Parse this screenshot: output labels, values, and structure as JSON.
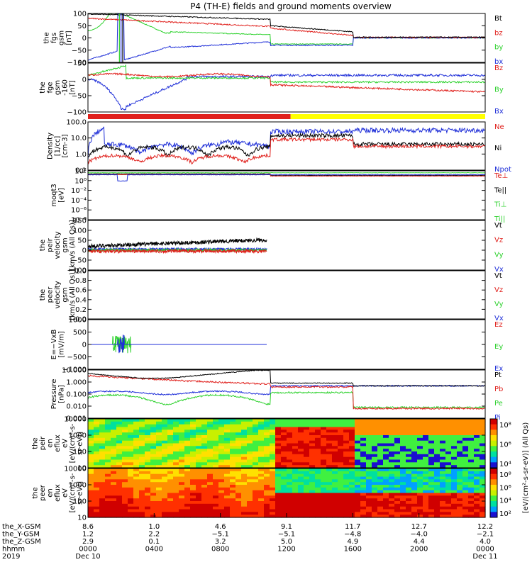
{
  "chart_data": {
    "type": "line",
    "title": "P4 (TH-E) fields and ground moments overview",
    "colors": {
      "black": "#000000",
      "red": "#e0201c",
      "green": "#2cd12c",
      "blue": "#1f2fd8",
      "yellow": "#ffff00",
      "gray": "#888888"
    },
    "panels": [
      {
        "id": "fgs",
        "ylabel": [
          "the",
          "fgs",
          "gsm",
          "[nT]"
        ],
        "yscale": "linear",
        "ylim": [
          -100,
          100
        ],
        "yticks": [
          "100",
          "50",
          "0",
          "−50",
          "−100"
        ],
        "legend": [
          {
            "label": "Bt",
            "color": "#000000"
          },
          {
            "label": "bz",
            "color": "#e0201c"
          },
          {
            "label": "by",
            "color": "#2cd12c"
          },
          {
            "label": "bx",
            "color": "#1f2fd8"
          }
        ]
      },
      {
        "id": "fge",
        "ylabel": [
          "the",
          "fge",
          "gsm",
          "-160",
          "[nT]"
        ],
        "yscale": "linear",
        "ylim": [
          -130,
          50
        ],
        "yticks": [
          "50",
          "0",
          "−50",
          "−100"
        ],
        "legend": [
          {
            "label": "Bz",
            "color": "#e0201c"
          },
          {
            "label": "By",
            "color": "#2cd12c"
          },
          {
            "label": "Bx",
            "color": "#1f2fd8"
          }
        ]
      },
      {
        "id": "density",
        "ylabel": [
          "Density",
          "[1/cc]",
          "[cm-3]"
        ],
        "yscale": "log",
        "ylim": [
          0.1,
          100
        ],
        "yticks": [
          "100.0",
          "10.0",
          "1.0",
          "0.1"
        ],
        "legend": [
          {
            "label": "Ne",
            "color": "#e0201c"
          },
          {
            "label": "Ni",
            "color": "#000000"
          },
          {
            "label": "Npot",
            "color": "#1f2fd8"
          }
        ]
      },
      {
        "id": "temp",
        "ylabel": [
          "moqt3",
          "[eV]"
        ],
        "yscale": "log",
        "ylim": [
          1e-10,
          1000
        ],
        "yticks": [
          "10²",
          "10⁰",
          "10⁻²",
          "10⁻⁴",
          "10⁻⁶",
          "10⁻⁸"
        ],
        "legend": [
          {
            "label": "Te⊥",
            "color": "#e0201c"
          },
          {
            "label": "Te||",
            "color": "#000000"
          },
          {
            "label": "Ti⊥",
            "color": "#2cd12c"
          },
          {
            "label": "Ti||",
            "color": "#2cd12c"
          }
        ]
      },
      {
        "id": "peir_vel",
        "ylabel": [
          "the",
          "peir",
          "velocity",
          "gsm",
          "[km/s (All Qs)]"
        ],
        "yscale": "linear",
        "ylim": [
          -100,
          150
        ],
        "yticks": [
          "150",
          "100",
          "50",
          "0",
          "−50",
          "−100"
        ],
        "legend": [
          {
            "label": "Vt",
            "color": "#000000"
          },
          {
            "label": "Vz",
            "color": "#e0201c"
          },
          {
            "label": "Vy",
            "color": "#2cd12c"
          },
          {
            "label": "Vx",
            "color": "#1f2fd8"
          }
        ]
      },
      {
        "id": "peer_vel",
        "ylabel": [
          "the",
          "peer",
          "velocity",
          "gsm",
          "[km/s (All Qs)]"
        ],
        "yscale": "linear",
        "ylim": [
          0,
          1
        ],
        "yticks": [
          "1.0",
          "0.8",
          "0.6",
          "0.4",
          "0.2",
          "0.0"
        ],
        "legend": [
          {
            "label": "Vt",
            "color": "#000000"
          },
          {
            "label": "Vz",
            "color": "#e0201c"
          },
          {
            "label": "Vy",
            "color": "#2cd12c"
          },
          {
            "label": "Vx",
            "color": "#1f2fd8"
          }
        ]
      },
      {
        "id": "efield",
        "ylabel": [
          "E=−VxB",
          "[mV/m]"
        ],
        "yscale": "linear",
        "ylim": [
          -1000,
          1000
        ],
        "yticks": [
          "1000",
          "500",
          "0",
          "−500",
          "−1000"
        ],
        "legend": [
          {
            "label": "Ez",
            "color": "#e0201c"
          },
          {
            "label": "Ey",
            "color": "#2cd12c"
          },
          {
            "label": "Ex",
            "color": "#1f2fd8"
          }
        ]
      },
      {
        "id": "pressure",
        "ylabel": [
          "Pressure",
          "[nPa]"
        ],
        "yscale": "log",
        "ylim": [
          0.0005,
          15
        ],
        "yticks": [
          "10.000",
          "1.000",
          "0.100",
          "0.010",
          "0.001"
        ],
        "legend": [
          {
            "label": "Pt",
            "color": "#000000"
          },
          {
            "label": "Pb",
            "color": "#e0201c"
          },
          {
            "label": "Pe",
            "color": "#2cd12c"
          },
          {
            "label": "Pi",
            "color": "#1f2fd8"
          }
        ]
      },
      {
        "id": "peir_spec",
        "ylabel": [
          "the",
          "peir",
          "en",
          "eflux",
          "eV",
          "[eV/(cm²-s-",
          "sr-eV)]"
        ],
        "yscale": "log",
        "ylim": [
          5,
          25000
        ],
        "yticks": [
          "10000",
          "1000",
          "100",
          "10"
        ],
        "colorbar": [
          "10⁸",
          "10⁶",
          "10⁴"
        ]
      },
      {
        "id": "peer_spec",
        "ylabel": [
          "the",
          "peer",
          "en",
          "eflux",
          "eV",
          "[eV/(cm²-s-",
          "sr-eV)]"
        ],
        "yscale": "log",
        "ylim": [
          5,
          25000
        ],
        "yticks": [
          "10000",
          "1000",
          "100",
          "10"
        ],
        "colorbar": [
          "10⁸",
          "10⁶",
          "10⁴",
          "10²"
        ]
      }
    ],
    "colorbar_label": "[eV/(cm²-s-sr-eV)] (All Qs)",
    "mode_bar": {
      "segments": [
        {
          "start": 0,
          "end": 0.51,
          "color": "red"
        },
        {
          "start": 0.51,
          "end": 1,
          "color": "yellow"
        }
      ]
    },
    "footer": {
      "rows": [
        {
          "label": "the_X-GSM",
          "values": [
            "8.6",
            "1.0",
            "4.6",
            "9.1",
            "11.7",
            "12.7",
            "12.2"
          ]
        },
        {
          "label": "the_Y-GSM",
          "values": [
            "1.2",
            "2.2",
            "−5.1",
            "−5.1",
            "−4.8",
            "−4.0",
            "−2.1"
          ]
        },
        {
          "label": "the_Z-GSM",
          "values": [
            "2.9",
            "0.1",
            "3.2",
            "5.0",
            "4.9",
            "4.4",
            "4.0"
          ]
        },
        {
          "label": "hhmm",
          "values": [
            "0000",
            "0400",
            "0800",
            "1200",
            "1600",
            "2000",
            "0000"
          ]
        },
        {
          "label": "2019",
          "values": [
            "Dec 10",
            "",
            "",
            "",
            "",
            "",
            "Dec 11"
          ]
        }
      ],
      "x_hours": [
        0,
        4,
        8,
        12,
        16,
        20,
        24
      ]
    }
  }
}
